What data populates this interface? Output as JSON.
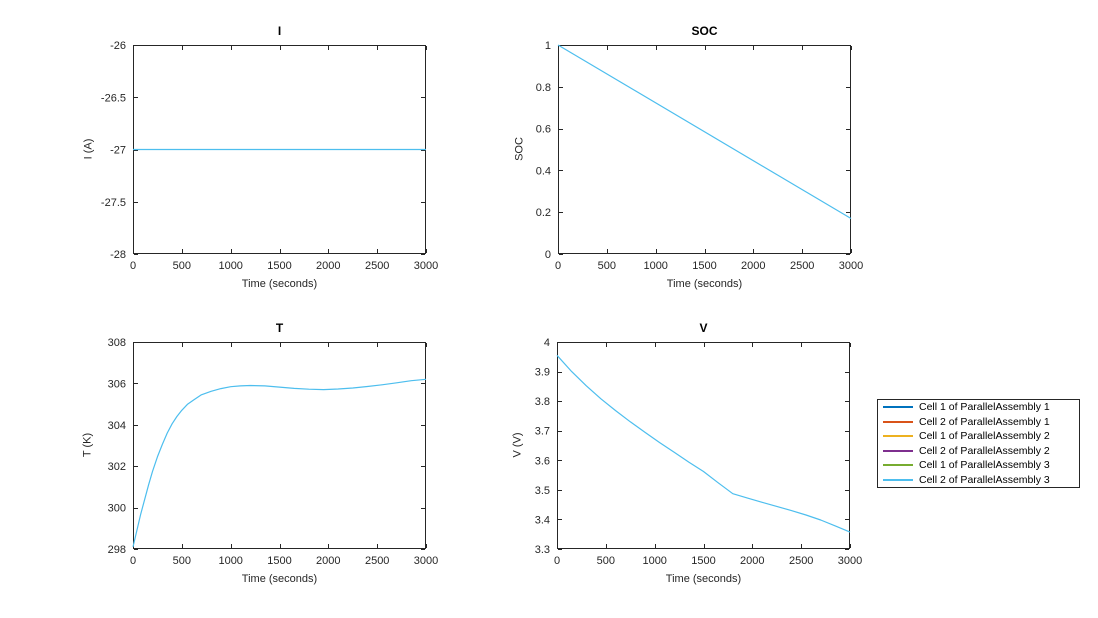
{
  "figure": {
    "background": "#ffffff",
    "axis_color": "#262626",
    "plot_line_color": "#4DBEEE"
  },
  "chart_data": [
    {
      "id": "I",
      "type": "line",
      "title": "I",
      "xlabel": "Time (seconds)",
      "ylabel": "I (A)",
      "xlim": [
        0,
        3000
      ],
      "ylim": [
        -28,
        -26
      ],
      "grid": false,
      "xticks": [
        0,
        500,
        1000,
        1500,
        2000,
        2500,
        3000
      ],
      "xtick_labels": [
        "0",
        "500",
        "1000",
        "1500",
        "2000",
        "2500",
        "3000"
      ],
      "yticks": [
        -28,
        -27.5,
        -27,
        -26.5,
        -26
      ],
      "ytick_labels": [
        "-28",
        "-27.5",
        "-27",
        "-26.5",
        "-26"
      ],
      "series": [
        {
          "name": "Cell 2 of ParallelAssembly 3",
          "color": "#4DBEEE",
          "x": [
            0,
            3000
          ],
          "y": [
            -27,
            -27
          ]
        }
      ]
    },
    {
      "id": "SOC",
      "type": "line",
      "title": "SOC",
      "xlabel": "Time (seconds)",
      "ylabel": "SOC",
      "xlim": [
        0,
        3000
      ],
      "ylim": [
        0,
        1
      ],
      "grid": false,
      "xticks": [
        0,
        500,
        1000,
        1500,
        2000,
        2500,
        3000
      ],
      "xtick_labels": [
        "0",
        "500",
        "1000",
        "1500",
        "2000",
        "2500",
        "3000"
      ],
      "yticks": [
        0,
        0.2,
        0.4,
        0.6,
        0.8,
        1
      ],
      "ytick_labels": [
        "0",
        "0.2",
        "0.4",
        "0.6",
        "0.8",
        "1"
      ],
      "series": [
        {
          "name": "Cell 2 of ParallelAssembly 3",
          "color": "#4DBEEE",
          "x": [
            0,
            3000
          ],
          "y": [
            1,
            0.17
          ]
        }
      ]
    },
    {
      "id": "T",
      "type": "line",
      "title": "T",
      "xlabel": "Time (seconds)",
      "ylabel": "T (K)",
      "xlim": [
        0,
        3000
      ],
      "ylim": [
        298,
        308
      ],
      "grid": false,
      "xticks": [
        0,
        500,
        1000,
        1500,
        2000,
        2500,
        3000
      ],
      "xtick_labels": [
        "0",
        "500",
        "1000",
        "1500",
        "2000",
        "2500",
        "3000"
      ],
      "yticks": [
        298,
        300,
        302,
        304,
        306,
        308
      ],
      "ytick_labels": [
        "298",
        "300",
        "302",
        "304",
        "306",
        "308"
      ],
      "series": [
        {
          "name": "Cell 2 of ParallelAssembly 3",
          "color": "#4DBEEE",
          "x": [
            0,
            40,
            80,
            120,
            160,
            200,
            250,
            300,
            350,
            400,
            450,
            500,
            560,
            620,
            700,
            800,
            900,
            1000,
            1100,
            1200,
            1350,
            1500,
            1650,
            1800,
            1950,
            2100,
            2250,
            2400,
            2550,
            2700,
            2850,
            3000
          ],
          "y": [
            298.1,
            298.9,
            299.7,
            300.4,
            301.1,
            301.75,
            302.45,
            303.05,
            303.6,
            304.05,
            304.4,
            304.7,
            305.0,
            305.2,
            305.45,
            305.62,
            305.75,
            305.84,
            305.88,
            305.9,
            305.88,
            305.82,
            305.76,
            305.72,
            305.7,
            305.73,
            305.78,
            305.85,
            305.93,
            306.03,
            306.13,
            306.2
          ]
        }
      ]
    },
    {
      "id": "V",
      "type": "line",
      "title": "V",
      "xlabel": "Time (seconds)",
      "ylabel": "V (V)",
      "xlim": [
        0,
        3000
      ],
      "ylim": [
        3.3,
        4
      ],
      "grid": false,
      "xticks": [
        0,
        500,
        1000,
        1500,
        2000,
        2500,
        3000
      ],
      "xtick_labels": [
        "0",
        "500",
        "1000",
        "1500",
        "2000",
        "2500",
        "3000"
      ],
      "yticks": [
        3.3,
        3.4,
        3.5,
        3.6,
        3.7,
        3.8,
        3.9,
        4
      ],
      "ytick_labels": [
        "3.3",
        "3.4",
        "3.5",
        "3.6",
        "3.7",
        "3.8",
        "3.9",
        "4"
      ],
      "series": [
        {
          "name": "Cell 2 of ParallelAssembly 3",
          "color": "#4DBEEE",
          "x": [
            0,
            150,
            300,
            450,
            600,
            750,
            900,
            1050,
            1200,
            1350,
            1500,
            1650,
            1800,
            1950,
            2100,
            2250,
            2400,
            2550,
            2700,
            2850,
            3000
          ],
          "y": [
            3.955,
            3.9,
            3.852,
            3.808,
            3.768,
            3.73,
            3.695,
            3.66,
            3.627,
            3.594,
            3.562,
            3.524,
            3.487,
            3.472,
            3.458,
            3.444,
            3.43,
            3.415,
            3.398,
            3.378,
            3.357
          ]
        }
      ]
    }
  ],
  "legend": {
    "border_color": "#262626",
    "items": [
      {
        "label": "Cell 1 of ParallelAssembly 1",
        "color": "#0072BD"
      },
      {
        "label": "Cell 2 of ParallelAssembly 1",
        "color": "#D95319"
      },
      {
        "label": "Cell 1 of ParallelAssembly 2",
        "color": "#EDB120"
      },
      {
        "label": "Cell 2 of ParallelAssembly 2",
        "color": "#7E2F8E"
      },
      {
        "label": "Cell 1 of ParallelAssembly 3",
        "color": "#77AC30"
      },
      {
        "label": "Cell 2 of ParallelAssembly 3",
        "color": "#4DBEEE"
      }
    ]
  }
}
